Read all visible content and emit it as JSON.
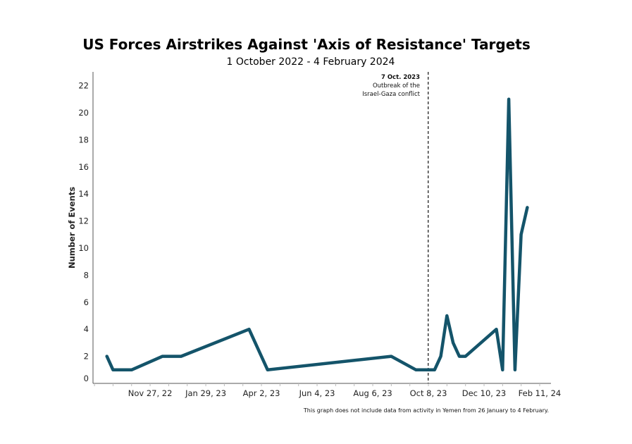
{
  "chart_data": {
    "type": "line",
    "title": "US Forces Airstrikes Against 'Axis of Resistance' Targets",
    "subtitle": "1 October 2022 - 4 February 2024",
    "xlabel": "",
    "ylabel": "Number of Events",
    "ylim": [
      0,
      23
    ],
    "yticks": [
      0,
      2,
      4,
      6,
      8,
      10,
      12,
      14,
      16,
      18,
      20,
      22
    ],
    "xticks": [
      {
        "label": "Nov 27, 22",
        "date": "2022-11-27"
      },
      {
        "label": "Jan 29, 23",
        "date": "2023-01-29"
      },
      {
        "label": "Apr 2, 23",
        "date": "2023-04-02"
      },
      {
        "label": "Jun 4, 23",
        "date": "2023-06-04"
      },
      {
        "label": "Aug 6, 23",
        "date": "2023-08-06"
      },
      {
        "label": "Oct 8, 23",
        "date": "2023-10-08"
      },
      {
        "label": "Dec 10, 23",
        "date": "2023-12-10"
      },
      {
        "label": "Feb 11, 24",
        "date": "2024-02-11"
      }
    ],
    "series": [
      {
        "name": "Airstrikes",
        "color": "#14546a",
        "x": [
          "2022-10-09",
          "2022-10-16",
          "2022-11-06",
          "2022-12-11",
          "2023-01-01",
          "2023-03-19",
          "2023-04-09",
          "2023-08-27",
          "2023-09-24",
          "2023-10-15",
          "2023-10-22",
          "2023-10-29",
          "2023-11-05",
          "2023-11-12",
          "2023-11-19",
          "2023-12-24",
          "2023-12-31",
          "2024-01-07",
          "2024-01-14",
          "2024-01-21",
          "2024-01-28"
        ],
        "values": [
          2,
          1,
          1,
          2,
          2,
          4,
          1,
          2,
          1,
          1,
          2,
          5,
          3,
          2,
          2,
          4,
          1,
          21,
          1,
          11,
          13
        ]
      }
    ],
    "annotation": {
      "date": "2023-10-07",
      "title": "7 Oct. 2023",
      "line1": "Outbreak of the",
      "line2": "Israel-Gaza conflict"
    },
    "footnote": "This graph does not include data from activity in Yemen from 26 January to 4 February.",
    "grid": false,
    "legend": "none"
  }
}
